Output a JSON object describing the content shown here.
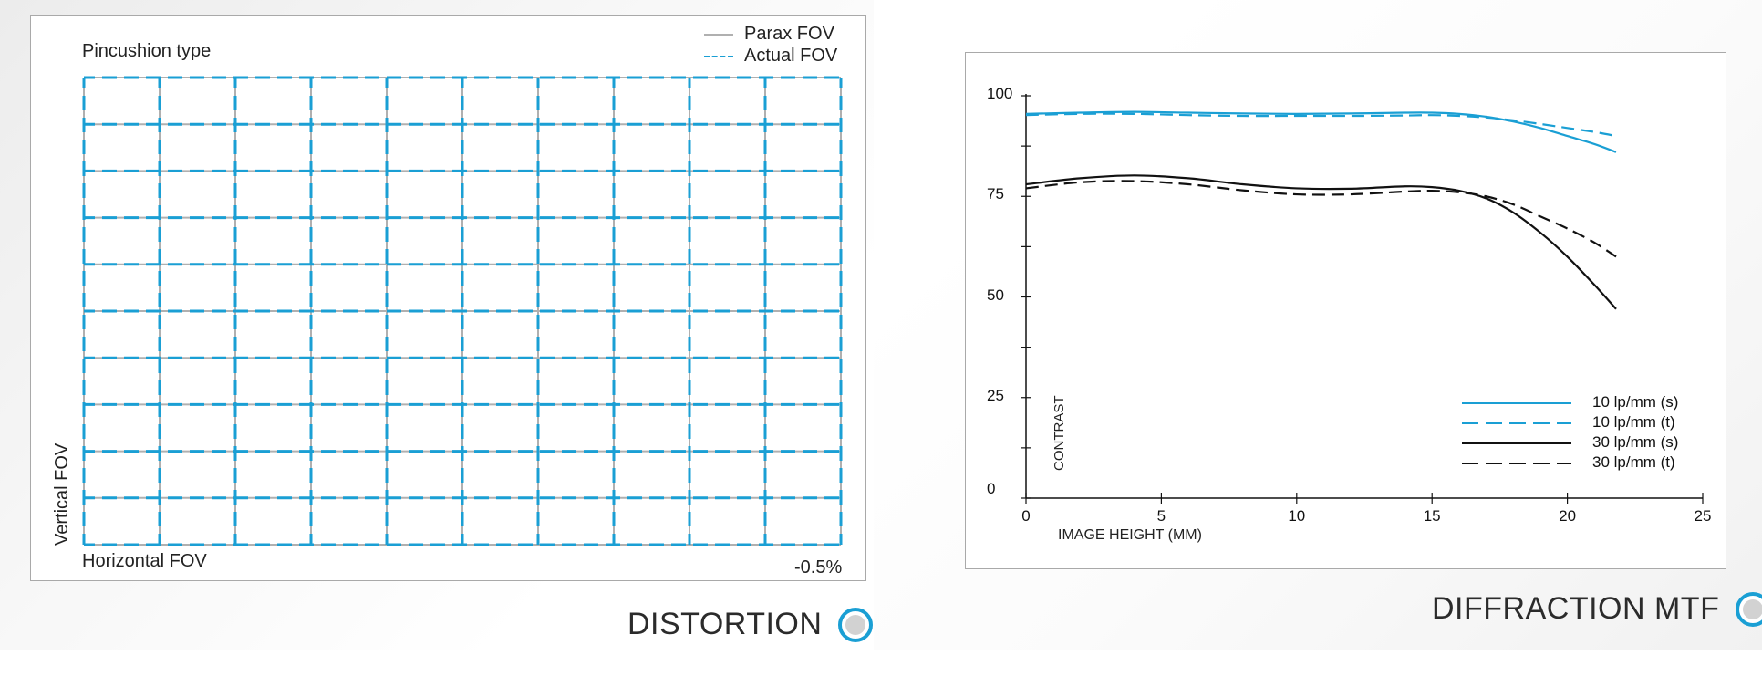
{
  "distortion": {
    "title_label": "Pincushion type",
    "legend": [
      {
        "label": "Parax FOV",
        "color": "#b0b0b0",
        "style": "solid"
      },
      {
        "label": "Actual FOV",
        "color": "#1a9fd4",
        "style": "dashed"
      }
    ],
    "y_axis_label": "Vertical FOV",
    "x_axis_label": "Horizontal FOV",
    "distortion_value": "-0.5%",
    "grid_columns": 10,
    "grid_rows": 10,
    "section_title": "DISTORTION"
  },
  "mtf": {
    "section_title": "DIFFRACTION MTF",
    "y_axis_label": "CONTRAST",
    "x_axis_label": "IMAGE HEIGHT (MM)"
  },
  "colors": {
    "accent": "#1a9fd4",
    "paraxial": "#b0b0b0",
    "black": "#111111"
  },
  "chart_data": [
    {
      "type": "line",
      "title": "DISTORTION",
      "xlabel": "Horizontal FOV",
      "ylabel": "Vertical FOV",
      "annotations": [
        "Pincushion type",
        "-0.5%"
      ],
      "series": [
        {
          "name": "Parax FOV",
          "style": "solid",
          "color": "#b0b0b0",
          "grid": "10x10 rectangular grid"
        },
        {
          "name": "Actual FOV",
          "style": "dashed",
          "color": "#1a9fd4",
          "grid": "10x10 grid, pincushion distortion -0.5%"
        }
      ],
      "legend_position": "top-right"
    },
    {
      "type": "line",
      "title": "DIFFRACTION MTF",
      "xlabel": "IMAGE HEIGHT (MM)",
      "ylabel": "CONTRAST",
      "xlim": [
        0,
        25
      ],
      "ylim": [
        0,
        100
      ],
      "xticks": [
        0,
        5,
        10,
        15,
        20,
        25
      ],
      "yticks": [
        0,
        25,
        50,
        75,
        100
      ],
      "legend_position": "bottom-right",
      "x": [
        0,
        2,
        4,
        6,
        8,
        10,
        12,
        14,
        15,
        16,
        17,
        18,
        19,
        20,
        21,
        21.8
      ],
      "series": [
        {
          "name": "10 lp/mm (s)",
          "color": "#1a9fd4",
          "style": "solid",
          "values": [
            95.5,
            95.8,
            96.0,
            95.8,
            95.6,
            95.5,
            95.6,
            95.8,
            95.8,
            95.5,
            94.8,
            93.6,
            92.0,
            90.0,
            88.0,
            86.0
          ]
        },
        {
          "name": "10 lp/mm (t)",
          "color": "#1a9fd4",
          "style": "dashed",
          "values": [
            95.2,
            95.5,
            95.5,
            95.2,
            95.0,
            95.0,
            95.0,
            95.1,
            95.2,
            95.0,
            94.6,
            93.9,
            93.0,
            92.0,
            91.0,
            90.0
          ]
        },
        {
          "name": "30 lp/mm (s)",
          "color": "#111111",
          "style": "solid",
          "values": [
            78.0,
            79.5,
            80.2,
            79.5,
            78.0,
            77.0,
            76.9,
            77.5,
            77.3,
            76.4,
            74.5,
            71.0,
            66.0,
            60.0,
            53.0,
            47.0
          ]
        },
        {
          "name": "30 lp/mm (t)",
          "color": "#111111",
          "style": "dashed",
          "values": [
            77.0,
            78.5,
            78.8,
            78.0,
            76.5,
            75.5,
            75.5,
            76.2,
            76.4,
            76.0,
            75.0,
            73.0,
            70.0,
            67.0,
            63.5,
            60.0
          ]
        }
      ]
    }
  ]
}
